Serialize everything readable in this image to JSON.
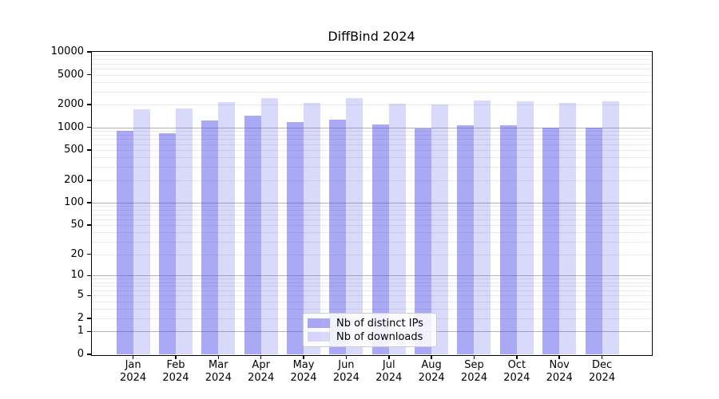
{
  "figure": {
    "background": "#ffffff",
    "axis_color": "#000000",
    "major_grid_color": "#b3b3b3",
    "minor_grid_color": "#eaeaea"
  },
  "chart_data": {
    "type": "bar",
    "title": "DiffBind 2024",
    "months": [
      "Jan",
      "Feb",
      "Mar",
      "Apr",
      "May",
      "Jun",
      "Jul",
      "Aug",
      "Sep",
      "Oct",
      "Nov",
      "Dec"
    ],
    "year": "2024",
    "series": [
      {
        "name": "Nb of distinct IPs",
        "color": "rgba(75,75,235,0.48)",
        "color_hex_on_white": "#a8a8f5",
        "values": [
          900,
          840,
          1240,
          1430,
          1170,
          1260,
          1090,
          960,
          1080,
          1060,
          990,
          1000
        ]
      },
      {
        "name": "Nb of downloads",
        "color": "rgba(75,75,235,0.21)",
        "color_hex_on_white": "#d9d9f9",
        "values": [
          1750,
          1800,
          2160,
          2460,
          2110,
          2460,
          2060,
          2010,
          2270,
          2190,
          2110,
          2200
        ]
      }
    ],
    "yticks": [
      0,
      1,
      2,
      5,
      10,
      20,
      50,
      100,
      200,
      500,
      1000,
      2000,
      5000,
      10000
    ],
    "yscale": "log1p",
    "ylim": [
      0,
      10000
    ],
    "grid": true,
    "legend_position": "lower center"
  }
}
